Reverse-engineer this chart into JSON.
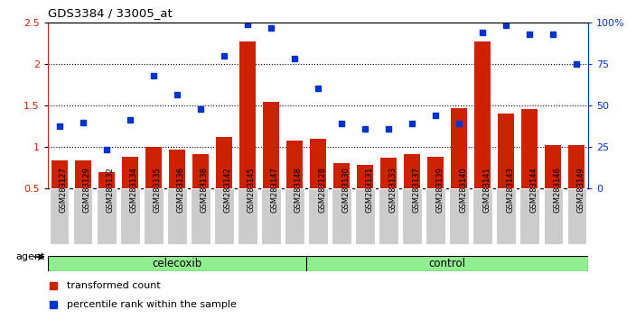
{
  "title": "GDS3384 / 33005_at",
  "categories": [
    "GSM283127",
    "GSM283129",
    "GSM283132",
    "GSM283134",
    "GSM283135",
    "GSM283136",
    "GSM283138",
    "GSM283142",
    "GSM283145",
    "GSM283147",
    "GSM283148",
    "GSM283128",
    "GSM283130",
    "GSM283131",
    "GSM283133",
    "GSM283137",
    "GSM283139",
    "GSM283140",
    "GSM283141",
    "GSM283143",
    "GSM283144",
    "GSM283146",
    "GSM283149"
  ],
  "bar_values": [
    0.84,
    0.84,
    0.69,
    0.88,
    1.0,
    0.97,
    0.91,
    1.12,
    2.27,
    1.54,
    1.07,
    1.1,
    0.8,
    0.78,
    0.87,
    0.91,
    0.88,
    1.47,
    2.27,
    1.4,
    1.45,
    1.02,
    1.02
  ],
  "dot_values": [
    1.25,
    1.29,
    0.97,
    1.32,
    1.86,
    1.63,
    1.45,
    2.1,
    2.48,
    2.43,
    2.06,
    1.7,
    1.28,
    1.22,
    1.22,
    1.28,
    1.38,
    1.28,
    2.38,
    2.46,
    2.36,
    2.36,
    2.0
  ],
  "celecoxib_count": 11,
  "control_count": 12,
  "ylim_left": [
    0.5,
    2.5
  ],
  "ylim_right": [
    0.0,
    100.0
  ],
  "yticks_left": [
    0.5,
    1.0,
    1.5,
    2.0,
    2.5
  ],
  "ytick_labels_left": [
    "0.5",
    "1",
    "1.5",
    "2",
    "2.5"
  ],
  "yticks_right": [
    0,
    25,
    50,
    75,
    100
  ],
  "ytick_labels_right": [
    "0",
    "25",
    "50",
    "75",
    "100%"
  ],
  "bar_color": "#cc2200",
  "dot_color": "#0033cc",
  "tick_bg_color": "#cccccc",
  "agent_strip_color": "#555555",
  "celecoxib_color": "#90ee90",
  "control_color": "#90ee90",
  "legend_bar_label": "transformed count",
  "legend_dot_label": "percentile rank within the sample",
  "agent_label": "agent"
}
